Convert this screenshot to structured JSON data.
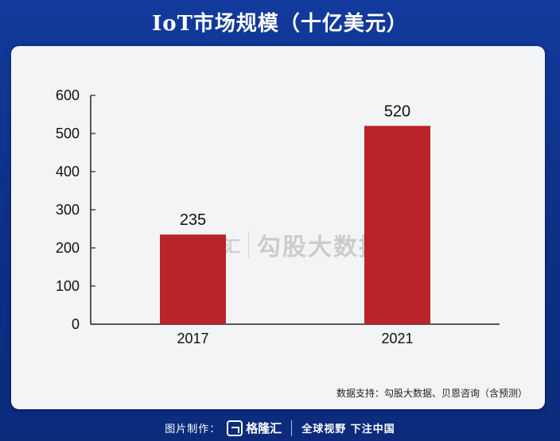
{
  "title": "IoT市场规模（十亿美元）",
  "source": "数据支持：勾股大数据、贝恩咨询（含预测）",
  "watermark": {
    "brand": "格隆汇",
    "text": "勾股大数据"
  },
  "footer": {
    "made_by": "图片制作：",
    "brand": "格隆汇",
    "slogan": "全球视野 下注中国"
  },
  "colors": {
    "bar": "#b9242a",
    "background": "#0f2f8c",
    "panel": "#f3f4f6"
  },
  "chart_data": {
    "type": "bar",
    "categories": [
      "2017",
      "2021"
    ],
    "values": [
      235,
      520
    ],
    "data_labels": [
      "235",
      "520"
    ],
    "yticks": [
      "0",
      "100",
      "200",
      "300",
      "400",
      "500",
      "600"
    ],
    "ylim": [
      0,
      600
    ],
    "grid": false,
    "legend": false
  }
}
